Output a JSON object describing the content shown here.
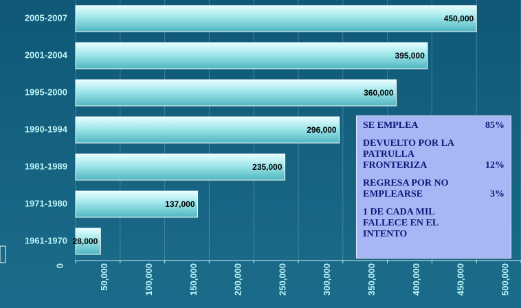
{
  "chart_data": {
    "type": "bar",
    "orientation": "horizontal",
    "categories": [
      "2005-2007",
      "2001-2004",
      "1995-2000",
      "1990-1994",
      "1981-1989",
      "1971-1980",
      "1961-1970"
    ],
    "values": [
      450000,
      395000,
      360000,
      296000,
      235000,
      137000,
      28000
    ],
    "value_labels": [
      "450,000",
      "395,000",
      "360,000",
      "296,000",
      "235,000",
      "137,000",
      "28,000"
    ],
    "color": "#a8eef0",
    "xlim": [
      0,
      500000
    ],
    "xticks": [
      0,
      {
        "value": 50000,
        "label": "50,000"
      },
      {
        "value": 100000,
        "label": "100,000"
      },
      {
        "value": 150000,
        "label": "150,000"
      },
      {
        "value": 200000,
        "label": "200,000"
      },
      {
        "value": 250000,
        "label": "250,000"
      },
      {
        "value": 300000,
        "label": "300,000"
      },
      {
        "value": 350000,
        "label": "350,000"
      },
      {
        "value": 400000,
        "label": "400,000"
      },
      {
        "value": 450000,
        "label": "450,000"
      },
      {
        "value": 500000,
        "label": "500,000"
      }
    ],
    "grid": true,
    "annotations": [
      {
        "text": "SE EMPLEA",
        "value": "85%"
      },
      {
        "text": "DEVUELTO POR LA PATRULLA FRONTERIZA",
        "value": "12%"
      },
      {
        "text": "REGRESA POR NO EMPLEARSE",
        "value": "3%"
      },
      {
        "text": "1 DE CADA MIL FALLECE EN EL INTENTO"
      }
    ]
  }
}
